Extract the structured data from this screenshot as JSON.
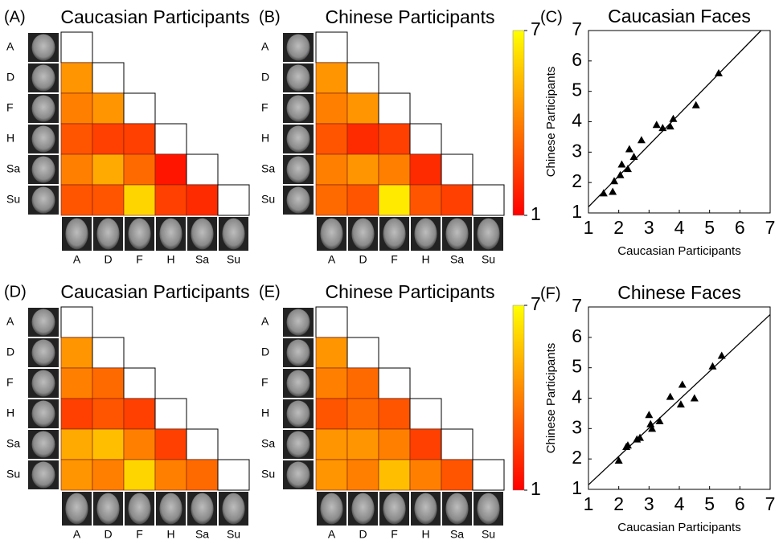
{
  "chart_data": [
    {
      "type": "heatmap",
      "panel_label": "(A)",
      "title": "Caucasian Participants",
      "categories": [
        "A",
        "D",
        "F",
        "H",
        "Sa",
        "Su"
      ],
      "values": [
        [
          null,
          null,
          null,
          null,
          null,
          null
        ],
        [
          4.5,
          null,
          null,
          null,
          null,
          null
        ],
        [
          4,
          4.5,
          null,
          null,
          null,
          null
        ],
        [
          3,
          2.5,
          2.5,
          null,
          null,
          null
        ],
        [
          4,
          5,
          3.5,
          1.5,
          null,
          null
        ],
        [
          3,
          3,
          6,
          2.5,
          2,
          null
        ]
      ],
      "clim": [
        1,
        7
      ],
      "colormap": [
        "#ff0000",
        "#ffff00"
      ],
      "colorbar": false
    },
    {
      "type": "heatmap",
      "panel_label": "(B)",
      "title": "Chinese Participants",
      "categories": [
        "A",
        "D",
        "F",
        "H",
        "Sa",
        "Su"
      ],
      "values": [
        [
          null,
          null,
          null,
          null,
          null,
          null
        ],
        [
          4.5,
          null,
          null,
          null,
          null,
          null
        ],
        [
          4,
          4.5,
          null,
          null,
          null,
          null
        ],
        [
          3,
          2,
          2.5,
          null,
          null,
          null
        ],
        [
          4,
          4.5,
          4,
          2,
          null,
          null
        ],
        [
          3.5,
          3,
          6.5,
          3,
          2.5,
          null
        ]
      ],
      "clim": [
        1,
        7
      ],
      "colormap": [
        "#ff0000",
        "#ffff00"
      ],
      "colorbar": true,
      "colorbar_ticks": [
        1,
        7
      ]
    },
    {
      "type": "scatter",
      "panel_label": "(C)",
      "title": "Caucasian Faces",
      "x_label": "Caucasian Participants",
      "y_label": "Chinese Participants",
      "x": [
        1.5,
        1.8,
        1.85,
        2.05,
        2.1,
        2.3,
        2.35,
        2.5,
        2.75,
        3.25,
        3.45,
        3.7,
        3.8,
        4.55,
        5.3
      ],
      "y": [
        1.65,
        1.7,
        2.05,
        2.25,
        2.6,
        2.45,
        3.1,
        2.85,
        3.4,
        3.9,
        3.8,
        3.85,
        4.1,
        4.55,
        5.6
      ],
      "fit_line": {
        "x": [
          1,
          6.7
        ],
        "y": [
          1.2,
          7
        ]
      },
      "xlim": [
        1,
        7
      ],
      "ylim": [
        1,
        7
      ],
      "xticks": [
        1,
        2,
        3,
        4,
        5,
        6,
        7
      ],
      "yticks": [
        1,
        2,
        3,
        4,
        5,
        6,
        7
      ],
      "color": "#000000"
    },
    {
      "type": "heatmap",
      "panel_label": "(D)",
      "title": "Caucasian Participants",
      "categories": [
        "A",
        "D",
        "F",
        "H",
        "Sa",
        "Su"
      ],
      "values": [
        [
          null,
          null,
          null,
          null,
          null,
          null
        ],
        [
          4.5,
          null,
          null,
          null,
          null,
          null
        ],
        [
          4,
          3.5,
          null,
          null,
          null,
          null
        ],
        [
          2.5,
          3,
          2.5,
          null,
          null,
          null
        ],
        [
          5,
          5.5,
          4,
          2.5,
          null,
          null
        ],
        [
          4.5,
          4,
          6,
          4,
          3.5,
          null
        ]
      ],
      "clim": [
        1,
        7
      ],
      "colormap": [
        "#ff0000",
        "#ffff00"
      ],
      "colorbar": false
    },
    {
      "type": "heatmap",
      "panel_label": "(E)",
      "title": "Chinese Participants",
      "categories": [
        "A",
        "D",
        "F",
        "H",
        "Sa",
        "Su"
      ],
      "values": [
        [
          null,
          null,
          null,
          null,
          null,
          null
        ],
        [
          4.5,
          null,
          null,
          null,
          null,
          null
        ],
        [
          4,
          3.5,
          null,
          null,
          null,
          null
        ],
        [
          3,
          3.5,
          3,
          null,
          null,
          null
        ],
        [
          4.5,
          4.5,
          4,
          2.5,
          null,
          null
        ],
        [
          4.5,
          4,
          5.5,
          4,
          3,
          null
        ]
      ],
      "clim": [
        1,
        7
      ],
      "colormap": [
        "#ff0000",
        "#ffff00"
      ],
      "colorbar": true,
      "colorbar_ticks": [
        1,
        7
      ]
    },
    {
      "type": "scatter",
      "panel_label": "(F)",
      "title": "Chinese Faces",
      "x_label": "Caucasian Participants",
      "y_label": "Chinese Participants",
      "x": [
        2,
        2.25,
        2.3,
        2.6,
        2.7,
        3,
        3.05,
        3.1,
        3.35,
        3.7,
        4.05,
        4.1,
        4.5,
        5.1,
        5.4
      ],
      "y": [
        1.95,
        2.4,
        2.45,
        2.65,
        2.7,
        3.45,
        3.15,
        3,
        3.25,
        4.05,
        3.8,
        4.45,
        4,
        5.05,
        5.4
      ],
      "fit_line": {
        "x": [
          1,
          7
        ],
        "y": [
          1.15,
          6.75
        ]
      },
      "xlim": [
        1,
        7
      ],
      "ylim": [
        1,
        7
      ],
      "xticks": [
        1,
        2,
        3,
        4,
        5,
        6,
        7
      ],
      "yticks": [
        1,
        2,
        3,
        4,
        5,
        6,
        7
      ],
      "color": "#000000"
    }
  ]
}
